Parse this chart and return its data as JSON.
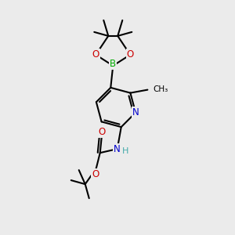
{
  "bg_color": "#ebebeb",
  "atom_colors": {
    "C": "#000000",
    "N": "#0000cc",
    "O": "#cc0000",
    "B": "#00aa00",
    "H": "#44aaaa"
  },
  "bond_color": "#000000",
  "bond_width": 1.5,
  "figsize": [
    3.0,
    3.0
  ],
  "dpi": 100,
  "label_fontsize": 8.5,
  "label_bg": "#ebebeb"
}
